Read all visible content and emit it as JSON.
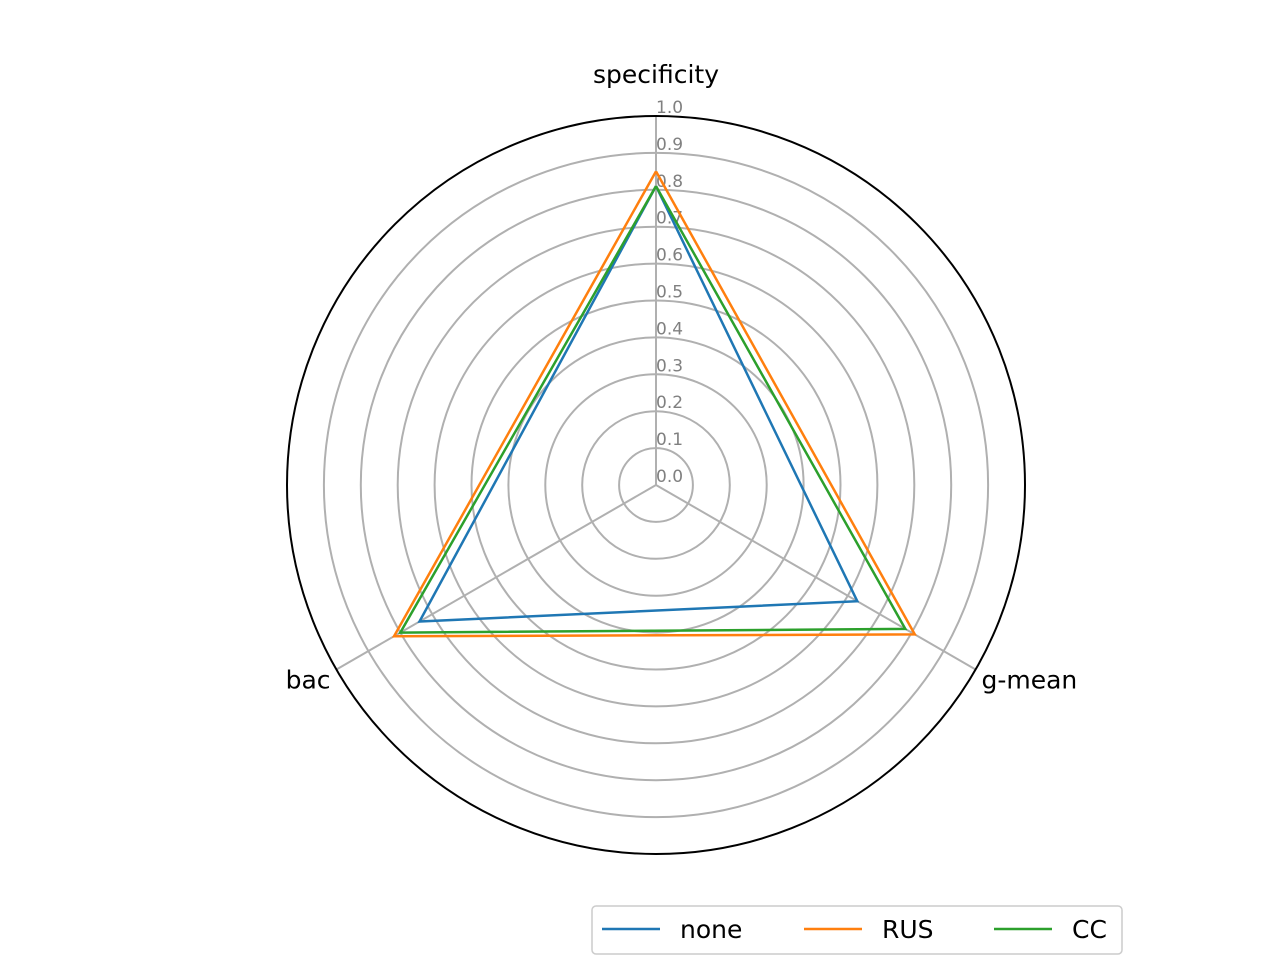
{
  "chart_data": {
    "type": "radar",
    "axes": [
      "specificity",
      "g-mean",
      "bac"
    ],
    "radial_ticks": [
      "0.0",
      "0.1",
      "0.2",
      "0.3",
      "0.4",
      "0.5",
      "0.6",
      "0.7",
      "0.8",
      "0.9",
      "1.0"
    ],
    "rlim": [
      0,
      1.0
    ],
    "grid": true,
    "legend_position": "bottom-right",
    "series": [
      {
        "name": "none",
        "color": "#1f77b4",
        "values": [
          0.81,
          0.63,
          0.74
        ]
      },
      {
        "name": "RUS",
        "color": "#ff7f0e",
        "values": [
          0.85,
          0.81,
          0.82
        ]
      },
      {
        "name": "CC",
        "color": "#2ca02c",
        "values": [
          0.81,
          0.78,
          0.8
        ]
      }
    ]
  }
}
